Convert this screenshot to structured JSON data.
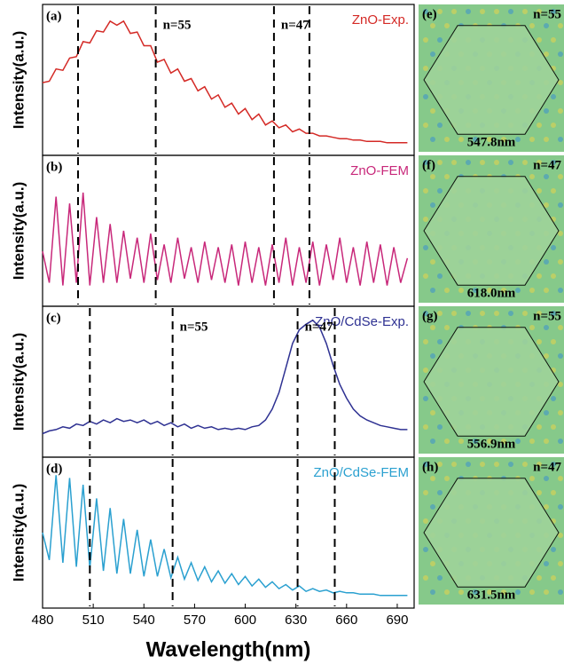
{
  "chart_data": [
    {
      "type": "line",
      "label": "(a)",
      "ylabel": "Intensity(a.u.)",
      "xlim": [
        480,
        700
      ],
      "ylim": [
        0,
        1
      ],
      "markers": [
        501,
        547,
        617,
        638
      ],
      "marker_labels": [
        null,
        "n=55",
        "n=47",
        null
      ],
      "x": [
        480,
        484,
        488,
        492,
        496,
        500,
        504,
        508,
        512,
        516,
        520,
        524,
        528,
        532,
        536,
        540,
        544,
        548,
        552,
        556,
        560,
        564,
        568,
        572,
        576,
        580,
        584,
        588,
        592,
        596,
        600,
        604,
        608,
        612,
        616,
        620,
        624,
        628,
        632,
        636,
        640,
        644,
        648,
        652,
        656,
        660,
        664,
        668,
        672,
        676,
        680,
        684,
        688,
        692,
        696
      ],
      "series": [
        {
          "name": "ZnO-Exp.",
          "color": "#d42a26",
          "values": [
            0.48,
            0.49,
            0.58,
            0.57,
            0.66,
            0.67,
            0.78,
            0.77,
            0.86,
            0.85,
            0.93,
            0.9,
            0.93,
            0.84,
            0.85,
            0.75,
            0.75,
            0.63,
            0.65,
            0.55,
            0.58,
            0.49,
            0.51,
            0.42,
            0.45,
            0.36,
            0.39,
            0.3,
            0.33,
            0.25,
            0.29,
            0.21,
            0.25,
            0.17,
            0.2,
            0.15,
            0.17,
            0.12,
            0.14,
            0.11,
            0.11,
            0.09,
            0.09,
            0.08,
            0.07,
            0.07,
            0.06,
            0.06,
            0.05,
            0.05,
            0.05,
            0.04,
            0.04,
            0.04,
            0.04
          ]
        }
      ]
    },
    {
      "type": "line",
      "label": "(b)",
      "ylabel": "Intensity(a.u.)",
      "xlim": [
        480,
        700
      ],
      "ylim": [
        0,
        1
      ],
      "markers": [
        501,
        547,
        617,
        638
      ],
      "marker_labels": [
        null,
        null,
        null,
        null
      ],
      "x": [
        480,
        484,
        488,
        492,
        496,
        500,
        504,
        508,
        512,
        516,
        520,
        524,
        528,
        532,
        536,
        540,
        544,
        548,
        552,
        556,
        560,
        564,
        568,
        572,
        576,
        580,
        584,
        588,
        592,
        596,
        600,
        604,
        608,
        612,
        616,
        620,
        624,
        628,
        632,
        636,
        640,
        644,
        648,
        652,
        656,
        660,
        664,
        668,
        672,
        676,
        680,
        684,
        688,
        692,
        696
      ],
      "series": [
        {
          "name": "ZnO-FEM",
          "color": "#c8287a",
          "values": [
            0.35,
            0.12,
            0.75,
            0.1,
            0.7,
            0.12,
            0.78,
            0.1,
            0.6,
            0.12,
            0.55,
            0.12,
            0.5,
            0.15,
            0.45,
            0.12,
            0.48,
            0.14,
            0.4,
            0.12,
            0.45,
            0.15,
            0.38,
            0.12,
            0.42,
            0.14,
            0.38,
            0.12,
            0.4,
            0.1,
            0.42,
            0.12,
            0.38,
            0.1,
            0.4,
            0.12,
            0.45,
            0.1,
            0.38,
            0.12,
            0.42,
            0.1,
            0.4,
            0.14,
            0.45,
            0.12,
            0.38,
            0.1,
            0.42,
            0.12,
            0.4,
            0.1,
            0.38,
            0.12,
            0.3
          ]
        }
      ]
    },
    {
      "type": "line",
      "label": "(c)",
      "ylabel": "Intensity(a.u.)",
      "xlim": [
        480,
        700
      ],
      "ylim": [
        0,
        1
      ],
      "markers": [
        508,
        557,
        631,
        653
      ],
      "marker_labels": [
        null,
        "n=55",
        "n=47",
        null
      ],
      "x": [
        480,
        484,
        488,
        492,
        496,
        500,
        504,
        508,
        512,
        516,
        520,
        524,
        528,
        532,
        536,
        540,
        544,
        548,
        552,
        556,
        560,
        564,
        568,
        572,
        576,
        580,
        584,
        588,
        592,
        596,
        600,
        604,
        608,
        612,
        616,
        620,
        624,
        628,
        632,
        636,
        640,
        644,
        648,
        652,
        656,
        660,
        664,
        668,
        672,
        676,
        680,
        684,
        688,
        692,
        696
      ],
      "series": [
        {
          "name": "ZnO/CdSe-Exp.",
          "color": "#2e3192",
          "values": [
            0.12,
            0.14,
            0.15,
            0.17,
            0.16,
            0.19,
            0.18,
            0.21,
            0.19,
            0.22,
            0.2,
            0.23,
            0.21,
            0.22,
            0.2,
            0.22,
            0.19,
            0.21,
            0.18,
            0.2,
            0.17,
            0.19,
            0.16,
            0.18,
            0.16,
            0.17,
            0.15,
            0.16,
            0.15,
            0.16,
            0.15,
            0.17,
            0.18,
            0.22,
            0.3,
            0.42,
            0.6,
            0.78,
            0.88,
            0.92,
            0.95,
            0.9,
            0.78,
            0.62,
            0.48,
            0.38,
            0.3,
            0.25,
            0.22,
            0.2,
            0.18,
            0.17,
            0.16,
            0.15,
            0.15
          ]
        }
      ]
    },
    {
      "type": "line",
      "label": "(d)",
      "ylabel": "Intensity(a.u.)",
      "xlabel": "Wavelength(nm)",
      "xlim": [
        480,
        700
      ],
      "ylim": [
        0,
        1
      ],
      "xticks": [
        480,
        510,
        540,
        570,
        600,
        630,
        660,
        690
      ],
      "markers": [
        508,
        557,
        631,
        653
      ],
      "marker_labels": [
        null,
        null,
        null,
        null
      ],
      "x": [
        480,
        484,
        488,
        492,
        496,
        500,
        504,
        508,
        512,
        516,
        520,
        524,
        528,
        532,
        536,
        540,
        544,
        548,
        552,
        556,
        560,
        564,
        568,
        572,
        576,
        580,
        584,
        588,
        592,
        596,
        600,
        604,
        608,
        612,
        616,
        620,
        624,
        628,
        632,
        636,
        640,
        644,
        648,
        652,
        656,
        660,
        664,
        668,
        672,
        676,
        680,
        684,
        688,
        692,
        696
      ],
      "series": [
        {
          "name": "ZnO/CdSe-FEM",
          "color": "#2aa0d0",
          "values": [
            0.5,
            0.3,
            0.92,
            0.28,
            0.9,
            0.25,
            0.85,
            0.24,
            0.75,
            0.22,
            0.68,
            0.2,
            0.6,
            0.2,
            0.52,
            0.18,
            0.45,
            0.18,
            0.38,
            0.17,
            0.32,
            0.16,
            0.28,
            0.15,
            0.25,
            0.14,
            0.22,
            0.13,
            0.2,
            0.12,
            0.18,
            0.11,
            0.16,
            0.1,
            0.14,
            0.09,
            0.12,
            0.08,
            0.11,
            0.07,
            0.09,
            0.07,
            0.08,
            0.06,
            0.07,
            0.06,
            0.06,
            0.05,
            0.05,
            0.05,
            0.04,
            0.04,
            0.04,
            0.04,
            0.04
          ]
        }
      ]
    }
  ],
  "field_maps": [
    {
      "label": "(e)",
      "mode": "n=55",
      "wavelength": "547.8nm"
    },
    {
      "label": "(f)",
      "mode": "n=47",
      "wavelength": "618.0nm"
    },
    {
      "label": "(g)",
      "mode": "n=55",
      "wavelength": "556.9nm"
    },
    {
      "label": "(h)",
      "mode": "n=47",
      "wavelength": "631.5nm"
    }
  ]
}
